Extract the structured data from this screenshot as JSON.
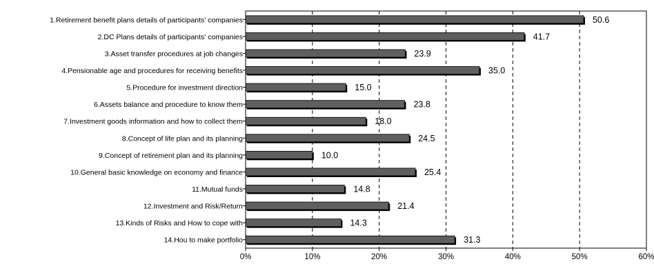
{
  "chart_data": {
    "type": "bar",
    "orientation": "horizontal",
    "title": "",
    "xlabel": "",
    "ylabel": "",
    "categories": [
      "1.Retirement benefit plans details of participants' companies",
      "2.DC Plans details of participants' companies",
      "3.Asset transfer procedures at job changes",
      "4.Pensionable age and procedures for receiving benefits",
      "5.Procedure for investment direction",
      "6.Assets balance and procedure to know them",
      "7.Investment goods information and how to collect them",
      "8.Concept of life plan and its planning",
      "9.Concept of retirement plan and its planning",
      "10.General basic knowledge on economy and finance",
      "11.Mutual funds",
      "12.Investment and Risk/Return",
      "13.Kinds of Risks and How to cope with",
      "14.Hou to make portfolio"
    ],
    "values": [
      50.6,
      41.7,
      23.9,
      35.0,
      15.0,
      23.8,
      18.0,
      24.5,
      10.0,
      25.4,
      14.8,
      21.4,
      14.3,
      31.3
    ],
    "value_labels": [
      "50.6",
      "41.7",
      "23.9",
      "35.0",
      "15.0",
      "23.8",
      "18.0",
      "24.5",
      "10.0",
      "25.4",
      "14.8",
      "21.4",
      "14.3",
      "31.3"
    ],
    "xlim": [
      0,
      60
    ],
    "ticks": [
      0,
      10,
      20,
      30,
      40,
      50,
      60
    ],
    "tick_labels": [
      "0%",
      "10%",
      "20%",
      "30%",
      "40%",
      "50%",
      "60%"
    ],
    "grid": "vertical-dashed",
    "legend": "none",
    "bar_color": "#5f5f5f",
    "bar_shadow_color": "#000000",
    "grid_color": "#000000"
  }
}
